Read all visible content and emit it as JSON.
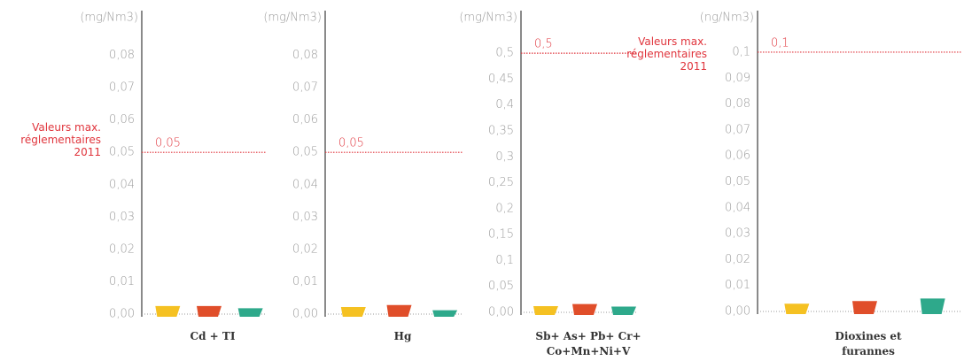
{
  "chart_data": [
    {
      "type": "bar",
      "unit": "(mg/Nm3)",
      "xlabel": "Cd + TI",
      "values": [
        0.0025,
        0.0025,
        0.0018
      ],
      "colors": [
        "#f5c122",
        "#e04e2a",
        "#2ea98b"
      ],
      "ylim": [
        0,
        0.093
      ],
      "yticks": [
        {
          "value": 0,
          "label": "0,00"
        },
        {
          "value": 0.01,
          "label": "0,01"
        },
        {
          "value": 0.02,
          "label": "0,02"
        },
        {
          "value": 0.03,
          "label": "0,03"
        },
        {
          "value": 0.04,
          "label": "0,04"
        },
        {
          "value": 0.05,
          "label": "0,05"
        },
        {
          "value": 0.06,
          "label": "0,06"
        },
        {
          "value": 0.07,
          "label": "0,07"
        },
        {
          "value": 0.08,
          "label": "0,08"
        }
      ],
      "reference": {
        "value": 0.05,
        "label": "0,05"
      },
      "annotation": "Valeurs max. réglementaires 2011"
    },
    {
      "type": "bar",
      "unit": "(mg/Nm3)",
      "xlabel": "Hg",
      "values": [
        0.0022,
        0.0028,
        0.0012
      ],
      "colors": [
        "#f5c122",
        "#e04e2a",
        "#2ea98b"
      ],
      "ylim": [
        0,
        0.093
      ],
      "yticks": [
        {
          "value": 0,
          "label": "0,00"
        },
        {
          "value": 0.01,
          "label": "0,01"
        },
        {
          "value": 0.02,
          "label": "0,02"
        },
        {
          "value": 0.03,
          "label": "0,03"
        },
        {
          "value": 0.04,
          "label": "0,04"
        },
        {
          "value": 0.05,
          "label": "0,05"
        },
        {
          "value": 0.06,
          "label": "0,06"
        },
        {
          "value": 0.07,
          "label": "0,07"
        },
        {
          "value": 0.08,
          "label": "0,08"
        }
      ],
      "reference": {
        "value": 0.05,
        "label": "0,05"
      }
    },
    {
      "type": "bar",
      "unit": "(mg/Nm3)",
      "xlabel": "Sb+ As+ Pb+ Cr+ Co+Mn+Ni+V",
      "values": [
        0.012,
        0.016,
        0.011
      ],
      "colors": [
        "#f5c122",
        "#e04e2a",
        "#2ea98b"
      ],
      "ylim": [
        0,
        0.577
      ],
      "yticks": [
        {
          "value": 0,
          "label": "0,00"
        },
        {
          "value": 0.05,
          "label": "0,05"
        },
        {
          "value": 0.1,
          "label": "0,1"
        },
        {
          "value": 0.15,
          "label": "0,15"
        },
        {
          "value": 0.2,
          "label": "0,2"
        },
        {
          "value": 0.25,
          "label": "0,25"
        },
        {
          "value": 0.3,
          "label": "0,3"
        },
        {
          "value": 0.35,
          "label": "0,35"
        },
        {
          "value": 0.4,
          "label": "0,4"
        },
        {
          "value": 0.45,
          "label": "0,45"
        },
        {
          "value": 0.5,
          "label": "0,5"
        }
      ],
      "reference": {
        "value": 0.5,
        "label": "0,5"
      }
    },
    {
      "type": "bar",
      "unit": "(ng/Nm3)",
      "xlabel": "Dioxines et furannes",
      "values": [
        0.003,
        0.004,
        0.005
      ],
      "colors": [
        "#f5c122",
        "#e04e2a",
        "#2ea98b"
      ],
      "ylim": [
        0,
        0.115
      ],
      "yticks": [
        {
          "value": 0,
          "label": "0,00"
        },
        {
          "value": 0.01,
          "label": "0,01"
        },
        {
          "value": 0.02,
          "label": "0,02"
        },
        {
          "value": 0.03,
          "label": "0,03"
        },
        {
          "value": 0.04,
          "label": "0,04"
        },
        {
          "value": 0.05,
          "label": "0,05"
        },
        {
          "value": 0.06,
          "label": "0,06"
        },
        {
          "value": 0.07,
          "label": "0,07"
        },
        {
          "value": 0.08,
          "label": "0,08"
        },
        {
          "value": 0.09,
          "label": "0,09"
        },
        {
          "value": 0.1,
          "label": "0,1"
        }
      ],
      "reference": {
        "value": 0.1,
        "label": "0,1"
      },
      "annotation": "Valeurs max. réglementaires 2011"
    }
  ]
}
